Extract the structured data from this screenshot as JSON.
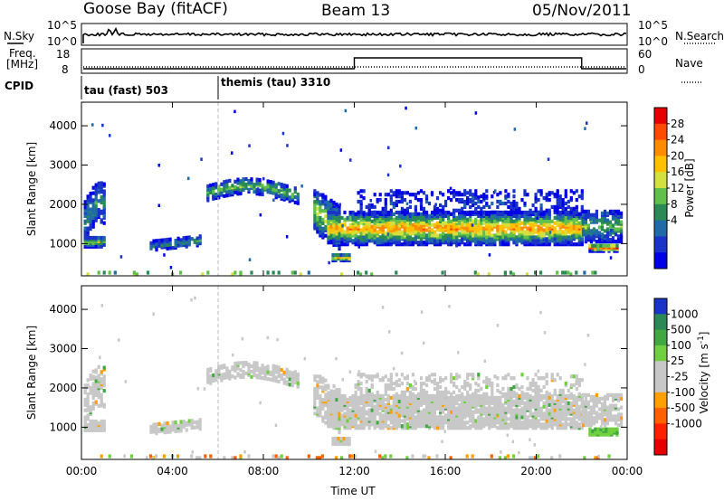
{
  "header": {
    "station": "Goose Bay (fitACF)",
    "beam": "Beam 13",
    "date": "05/Nov/2011"
  },
  "aux": {
    "nsky_label": "N.Sky",
    "nsky_ticks": [
      "10^5",
      "10^0"
    ],
    "nsearch_label": "N.Search",
    "nsearch_ticks": [
      "10^5",
      "10^0"
    ],
    "freq_label_1": "Freq.",
    "freq_label_2": "[MHz]",
    "freq_ticks": [
      "18",
      "8"
    ],
    "nave_label": "Nave",
    "nave_ticks": [
      "60",
      "0"
    ],
    "cpid_label": "CPID",
    "cpid_segments": [
      {
        "label": "tau (fast) 503",
        "start_hour": 0
      },
      {
        "label": "themis (tau) 3310",
        "start_hour": 6
      }
    ],
    "nave_step": {
      "low": 10,
      "high": 40,
      "step_up_hour": 12,
      "step_down_hour": 22
    }
  },
  "chart_data": [
    {
      "type": "heatmap",
      "name": "Power",
      "xlabel": "Time UT",
      "ylabel": "Slant Range [km]",
      "xlim": [
        0,
        24
      ],
      "ylim": [
        180,
        4600
      ],
      "x_tick_labels": [
        "00:00",
        "04:00",
        "08:00",
        "12:00",
        "16:00",
        "20:00",
        "00:00"
      ],
      "y_tick_labels": [
        "1000",
        "2000",
        "3000",
        "4000"
      ],
      "colorbar": {
        "label": "Power [dB]",
        "tick_labels": [
          "28",
          "24",
          "20",
          "16",
          "12",
          "8",
          "4"
        ],
        "colors": [
          "#e60000",
          "#ff4a00",
          "#ff8c00",
          "#ffc000",
          "#d4e040",
          "#60c04a",
          "#2a8a55",
          "#1f6aa8",
          "#1a33c8",
          "#0000e6"
        ]
      }
    },
    {
      "type": "heatmap",
      "name": "Velocity",
      "xlabel": "Time UT",
      "ylabel": "Slant Range [km]",
      "xlim": [
        0,
        24
      ],
      "ylim": [
        180,
        4600
      ],
      "x_tick_labels": [
        "00:00",
        "04:00",
        "08:00",
        "12:00",
        "16:00",
        "20:00",
        "00:00"
      ],
      "y_tick_labels": [
        "1000",
        "2000",
        "3000",
        "4000"
      ],
      "colorbar": {
        "label": "Velocity [m s",
        "label_sup": "-1",
        "label_end": "]",
        "tick_labels": [
          "1000",
          "500",
          "100",
          "25",
          "-25",
          "-100",
          "-500",
          "-1000"
        ],
        "colors": [
          "#1a33c8",
          "#2a8a55",
          "#40a840",
          "#70d040",
          "#c8c8c8",
          "#c8c8c8",
          "#ffa000",
          "#ff6000",
          "#ff2000",
          "#e60000"
        ]
      }
    }
  ]
}
